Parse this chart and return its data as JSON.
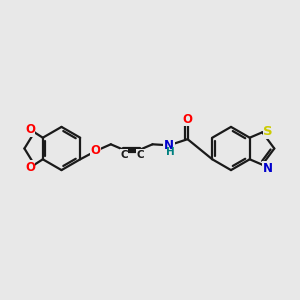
{
  "background_color": "#e8e8e8",
  "bond_color": "#1a1a1a",
  "oxygen_color": "#ff0000",
  "nitrogen_color": "#0000cc",
  "sulfur_color": "#cccc00",
  "nh_color": "#008080",
  "figsize": [
    3.0,
    3.0
  ],
  "dpi": 100,
  "xlim": [
    0,
    10
  ],
  "ylim": [
    0,
    10
  ]
}
